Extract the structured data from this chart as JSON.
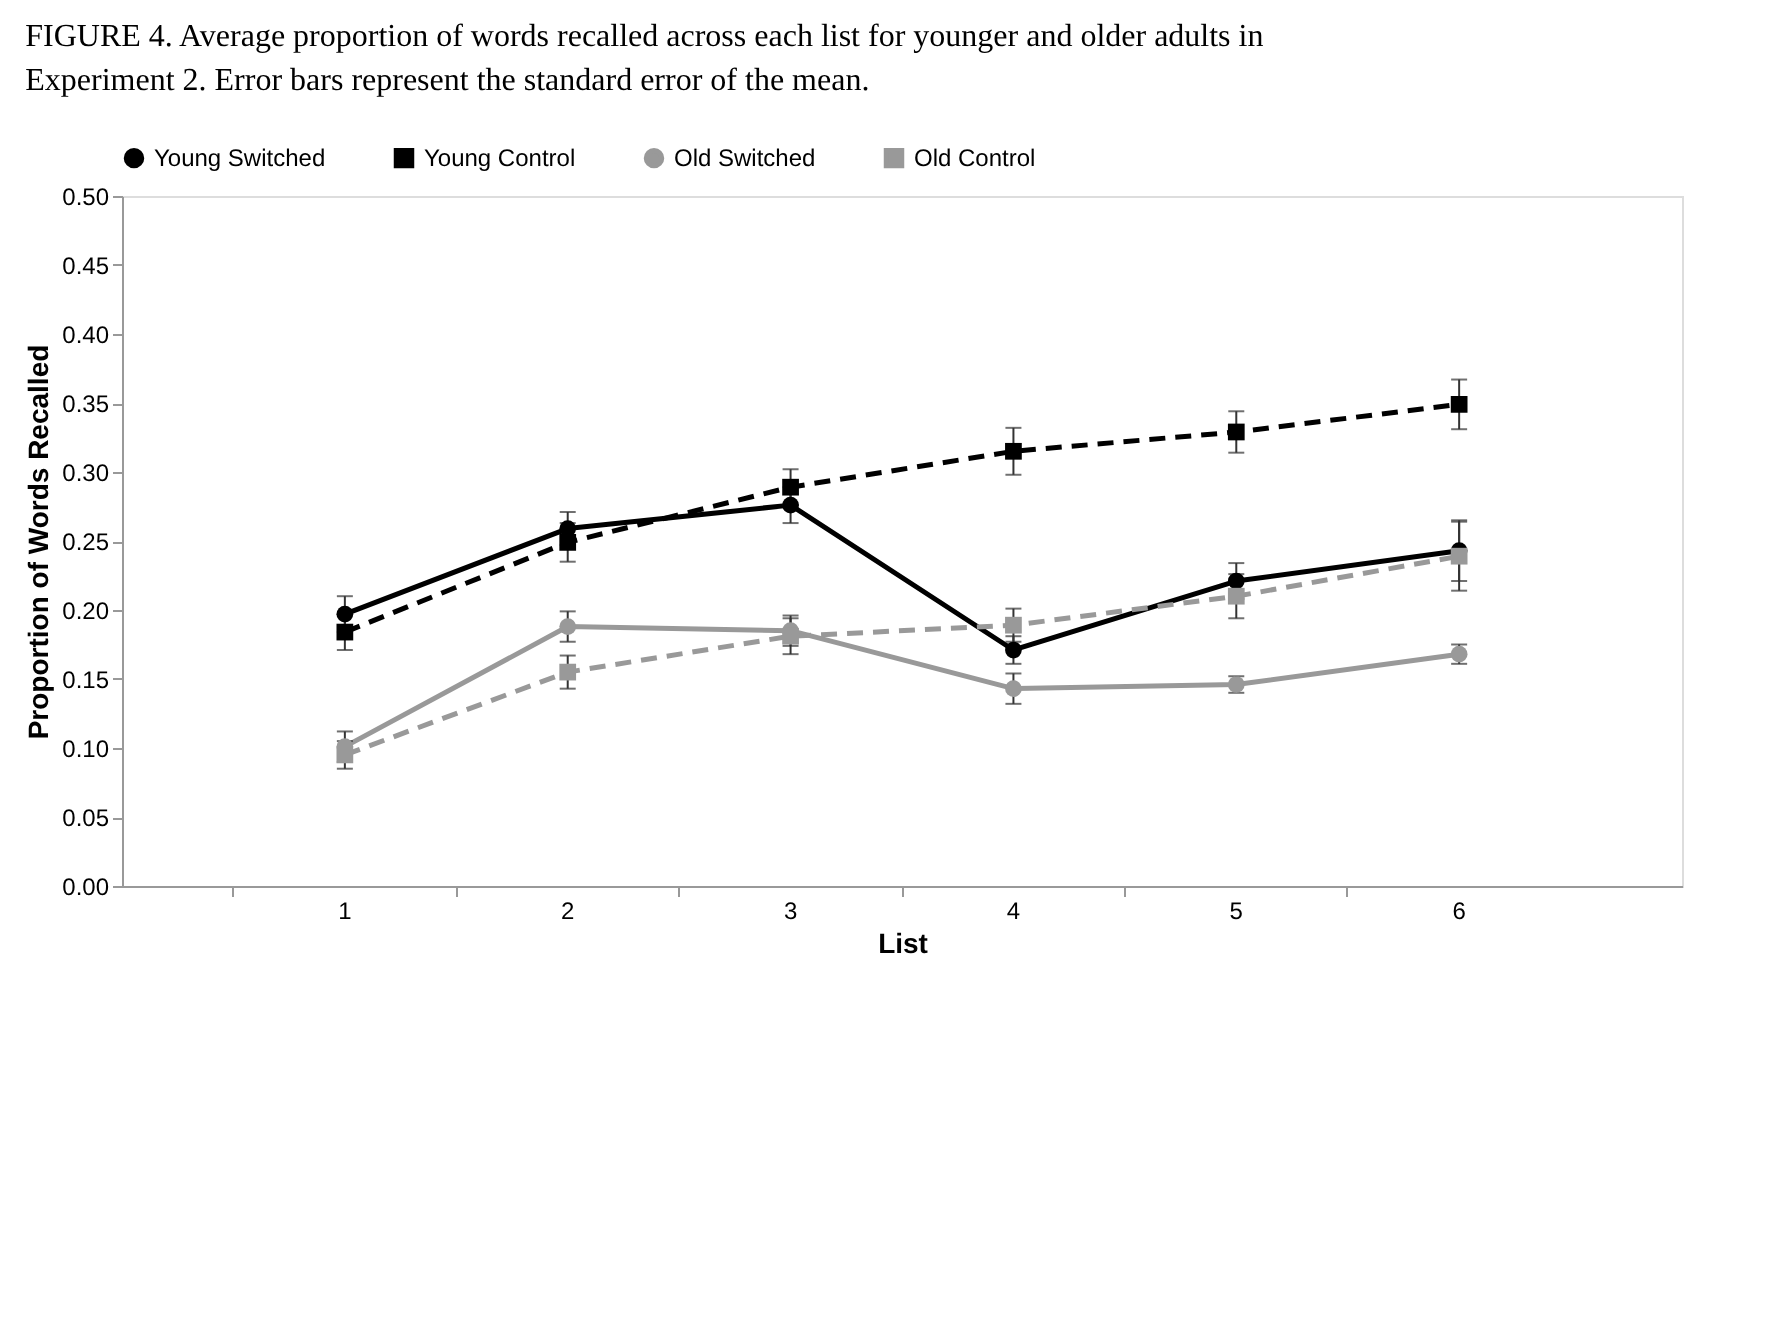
{
  "chart_data": {
    "type": "line",
    "title": "FIGURE 4. Average proportion of words recalled across each list for younger and older adults in Experiment 2. Error bars represent the standard error of the mean.",
    "xlabel": "List",
    "ylabel": "Proportion of Words Recalled",
    "categories": [
      "1",
      "2",
      "3",
      "4",
      "5",
      "6"
    ],
    "ylim": [
      0,
      0.5
    ],
    "yticks": [
      {
        "value": 0,
        "label": "0.00"
      },
      {
        "value": 0.05,
        "label": "0.05"
      },
      {
        "value": 0.1,
        "label": "0.10"
      },
      {
        "value": 0.15,
        "label": "0.15"
      },
      {
        "value": 0.2,
        "label": "0.20"
      },
      {
        "value": 0.25,
        "label": "0.25"
      },
      {
        "value": 0.3,
        "label": "0.30"
      },
      {
        "value": 0.35,
        "label": "0.35"
      },
      {
        "value": 0.4,
        "label": "0.40"
      },
      {
        "value": 0.45,
        "label": "0.45"
      },
      {
        "value": 0.5,
        "label": "0.50"
      }
    ],
    "grid": false,
    "legend": "top",
    "series": [
      {
        "name": "Young Switched",
        "color": "#000000",
        "marker": "circle",
        "line_style": "solid",
        "values": [
          0.197,
          0.259,
          0.276,
          0.171,
          0.221,
          0.243
        ],
        "errors": [
          0.013,
          0.012,
          0.013,
          0.01,
          0.013,
          0.022
        ]
      },
      {
        "name": "Young Control",
        "color": "#000000",
        "marker": "square",
        "line_style": "dashed",
        "values": [
          0.184,
          0.249,
          0.289,
          0.315,
          0.329,
          0.349
        ],
        "errors": [
          0.013,
          0.014,
          0.013,
          0.017,
          0.015,
          0.018
        ]
      },
      {
        "name": "Old Switched",
        "color": "#999999",
        "marker": "circle",
        "line_style": "solid",
        "values": [
          0.101,
          0.188,
          0.185,
          0.143,
          0.146,
          0.168
        ],
        "errors": [
          0.011,
          0.011,
          0.011,
          0.011,
          0.006,
          0.007
        ]
      },
      {
        "name": "Old Control",
        "color": "#999999",
        "marker": "square",
        "line_style": "dashed",
        "values": [
          0.095,
          0.155,
          0.181,
          0.189,
          0.21,
          0.239
        ],
        "errors": [
          0.01,
          0.012,
          0.013,
          0.012,
          0.016,
          0.025
        ]
      }
    ]
  }
}
